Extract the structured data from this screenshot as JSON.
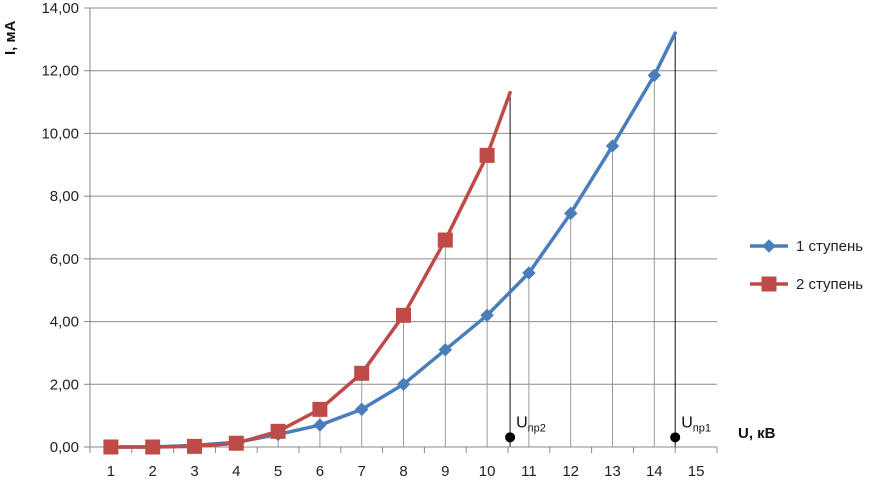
{
  "chart_data": {
    "type": "line",
    "xlabel": "U, кВ",
    "ylabel": "I, мА",
    "x_ticks": [
      "1",
      "2",
      "3",
      "4",
      "5",
      "6",
      "7",
      "8",
      "9",
      "10",
      "11",
      "12",
      "13",
      "14",
      "15"
    ],
    "y_ticks": [
      "0,00",
      "2,00",
      "4,00",
      "6,00",
      "8,00",
      "10,00",
      "12,00",
      "14,00"
    ],
    "xlim": [
      0.5,
      15.5
    ],
    "ylim": [
      0,
      14
    ],
    "grid": "vertical drop lines at data points, horizontal gridlines",
    "legend_position": "right",
    "series": [
      {
        "name": "1 ступень",
        "color": "#4a7ebb",
        "marker": "diamond",
        "points": [
          [
            1,
            0.0
          ],
          [
            2,
            0.0
          ],
          [
            3,
            0.05
          ],
          [
            4,
            0.15
          ],
          [
            5,
            0.4
          ],
          [
            6,
            0.7
          ],
          [
            7,
            1.2
          ],
          [
            8,
            2.0
          ],
          [
            9,
            3.1
          ],
          [
            10,
            4.2
          ],
          [
            11,
            5.55
          ],
          [
            12,
            7.45
          ],
          [
            13,
            9.6
          ],
          [
            14,
            11.85
          ]
        ],
        "extension": [
          [
            14.5,
            13.2
          ]
        ]
      },
      {
        "name": "2 ступень",
        "color": "#be4b48",
        "marker": "square",
        "points": [
          [
            1,
            0.0
          ],
          [
            2,
            0.0
          ],
          [
            3,
            0.02
          ],
          [
            4,
            0.12
          ],
          [
            5,
            0.5
          ],
          [
            6,
            1.2
          ],
          [
            7,
            2.35
          ],
          [
            8,
            4.2
          ],
          [
            9,
            6.6
          ],
          [
            10,
            9.3
          ]
        ],
        "extension": [
          [
            10.55,
            11.3
          ]
        ]
      }
    ],
    "annotations": [
      {
        "main": "U",
        "sub": "пр2",
        "x": 10.55,
        "y": 0.5
      },
      {
        "main": "U",
        "sub": "пр1",
        "x": 14.5,
        "y": 0.5
      }
    ]
  }
}
